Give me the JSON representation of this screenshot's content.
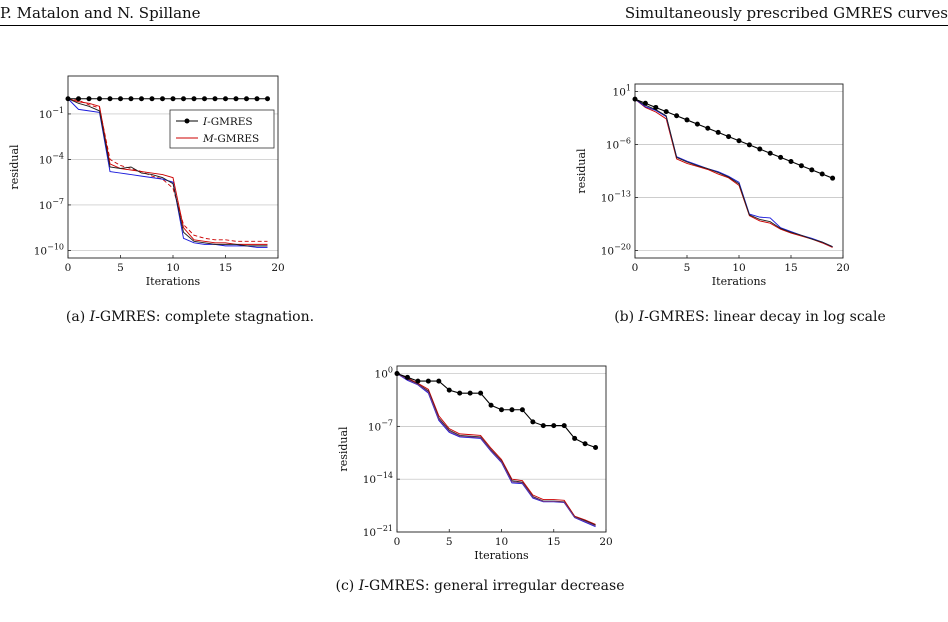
{
  "header": {
    "left": "P. Matalon and N. Spillane",
    "right": "Simultaneously prescribed GMRES curves"
  },
  "chart_data": [
    {
      "type": "line",
      "id": "a",
      "caption": "(a) I-GMRES: complete stagnation.",
      "xlabel": "Iterations",
      "ylabel": "residual",
      "xlim": [
        0,
        20
      ],
      "ylim_exp": [
        -10.5,
        1.5
      ],
      "log_y": true,
      "xticks": [
        0,
        5,
        10,
        15,
        20
      ],
      "yticks": [
        -1,
        -4,
        -7,
        -10
      ],
      "legend": {
        "position": "top-right",
        "entries": [
          "I-GMRES",
          "M-GMRES"
        ]
      },
      "series": [
        {
          "name": "I-GMRES",
          "color": "#000000",
          "marker": true,
          "y_exp": [
            0,
            0,
            0,
            0,
            0,
            0,
            0,
            0,
            0,
            0,
            0,
            0,
            0,
            0,
            0,
            0,
            0,
            0,
            0,
            0
          ]
        },
        {
          "name": "M-GMRES",
          "color": "#cc0000",
          "dash": false,
          "y_exp": [
            0,
            -0.2,
            -0.3,
            -0.5,
            -4.3,
            -4.6,
            -4.7,
            -4.8,
            -4.9,
            -5.0,
            -5.2,
            -8.5,
            -9.3,
            -9.4,
            -9.5,
            -9.5,
            -9.6,
            -9.6,
            -9.6,
            -9.6
          ]
        },
        {
          "name": "",
          "color": "#cc0000",
          "dash": true,
          "y_exp": [
            0,
            -0.1,
            -0.4,
            -0.6,
            -4.0,
            -4.4,
            -4.6,
            -4.8,
            -5.1,
            -5.3,
            -5.9,
            -8.3,
            -9.0,
            -9.2,
            -9.3,
            -9.3,
            -9.4,
            -9.4,
            -9.4,
            -9.4
          ]
        },
        {
          "name": "",
          "color": "#1a1adb",
          "dash": false,
          "y_exp": [
            0,
            -0.7,
            -0.8,
            -0.9,
            -4.8,
            -4.9,
            -5.0,
            -5.1,
            -5.2,
            -5.3,
            -5.5,
            -9.2,
            -9.5,
            -9.6,
            -9.6,
            -9.7,
            -9.7,
            -9.7,
            -9.8,
            -9.8
          ]
        },
        {
          "name": "",
          "color": "#222222",
          "dash": false,
          "y_exp": [
            0,
            -0.3,
            -0.5,
            -0.8,
            -4.5,
            -4.6,
            -4.5,
            -4.9,
            -5.0,
            -5.2,
            -5.6,
            -8.8,
            -9.4,
            -9.5,
            -9.6,
            -9.6,
            -9.6,
            -9.7,
            -9.7,
            -9.7
          ]
        }
      ]
    },
    {
      "type": "line",
      "id": "b",
      "caption": "(b) I-GMRES: linear decay in log scale",
      "xlabel": "Iterations",
      "ylabel": "residual",
      "xlim": [
        0,
        20
      ],
      "ylim_exp": [
        -21,
        2
      ],
      "log_y": true,
      "xticks": [
        0,
        5,
        10,
        15,
        20
      ],
      "yticks": [
        1,
        -6,
        -13,
        -20
      ],
      "series": [
        {
          "name": "I-GMRES",
          "color": "#000000",
          "marker": true,
          "y_exp": [
            0,
            -0.55,
            -1.1,
            -1.65,
            -2.2,
            -2.75,
            -3.3,
            -3.85,
            -4.4,
            -4.95,
            -5.5,
            -6.05,
            -6.6,
            -7.15,
            -7.7,
            -8.25,
            -8.8,
            -9.35,
            -9.9,
            -10.45
          ]
        },
        {
          "name": "",
          "color": "#cc0000",
          "y_exp": [
            0,
            -1.1,
            -1.7,
            -2.6,
            -7.9,
            -8.5,
            -8.9,
            -9.3,
            -9.9,
            -10.4,
            -11.4,
            -15.4,
            -16.1,
            -16.4,
            -17.2,
            -17.7,
            -18.1,
            -18.5,
            -19.0,
            -19.6
          ]
        },
        {
          "name": "",
          "color": "#1a1adb",
          "y_exp": [
            0,
            -1.0,
            -1.5,
            -2.3,
            -7.6,
            -8.2,
            -8.7,
            -9.2,
            -9.6,
            -10.2,
            -11.0,
            -15.2,
            -15.6,
            -15.7,
            -17.0,
            -17.5,
            -18.0,
            -18.4,
            -18.9,
            -19.5
          ]
        },
        {
          "name": "",
          "color": "#222222",
          "y_exp": [
            0,
            -0.8,
            -1.4,
            -2.2,
            -7.7,
            -8.3,
            -8.8,
            -9.2,
            -9.7,
            -10.3,
            -11.2,
            -15.3,
            -15.9,
            -16.2,
            -17.1,
            -17.6,
            -18.0,
            -18.5,
            -18.9,
            -19.5
          ]
        }
      ]
    },
    {
      "type": "line",
      "id": "c",
      "caption": "(c) I-GMRES: general irregular decrease",
      "xlabel": "Iterations",
      "ylabel": "residual",
      "xlim": [
        0,
        20
      ],
      "ylim_exp": [
        -21,
        1
      ],
      "log_y": true,
      "xticks": [
        0,
        5,
        10,
        15,
        20
      ],
      "yticks": [
        0,
        -7,
        -14,
        -21
      ],
      "series": [
        {
          "name": "I-GMRES",
          "color": "#000000",
          "marker": true,
          "y_exp": [
            0,
            -0.5,
            -1.0,
            -1.0,
            -1.0,
            -2.2,
            -2.6,
            -2.6,
            -2.6,
            -4.2,
            -4.8,
            -4.8,
            -4.8,
            -6.4,
            -6.9,
            -6.9,
            -6.9,
            -8.6,
            -9.3,
            -9.8
          ]
        },
        {
          "name": "",
          "color": "#cc0000",
          "y_exp": [
            0,
            -0.6,
            -1.3,
            -2.1,
            -5.6,
            -7.3,
            -8.0,
            -8.1,
            -8.2,
            -9.9,
            -11.4,
            -14.0,
            -14.2,
            -16.1,
            -16.7,
            -16.7,
            -16.8,
            -18.9,
            -19.4,
            -20.0
          ]
        },
        {
          "name": "",
          "color": "#1a1adb",
          "y_exp": [
            0,
            -0.9,
            -1.5,
            -2.6,
            -6.2,
            -7.8,
            -8.4,
            -8.5,
            -8.6,
            -10.3,
            -11.8,
            -14.5,
            -14.6,
            -16.5,
            -17.0,
            -17.0,
            -17.1,
            -19.1,
            -19.7,
            -20.3
          ]
        },
        {
          "name": "",
          "color": "#222222",
          "y_exp": [
            0,
            -0.7,
            -1.4,
            -2.3,
            -5.9,
            -7.5,
            -8.2,
            -8.3,
            -8.4,
            -10.1,
            -11.6,
            -14.2,
            -14.4,
            -16.3,
            -16.9,
            -16.9,
            -17.0,
            -19.0,
            -19.5,
            -20.1
          ]
        },
        {
          "name": "",
          "color": "#7a3a8a",
          "y_exp": [
            0,
            -0.8,
            -1.45,
            -2.45,
            -6.05,
            -7.65,
            -8.3,
            -8.4,
            -8.5,
            -10.2,
            -11.7,
            -14.35,
            -14.5,
            -16.4,
            -16.95,
            -16.95,
            -17.05,
            -19.05,
            -19.6,
            -20.2
          ]
        }
      ]
    }
  ]
}
